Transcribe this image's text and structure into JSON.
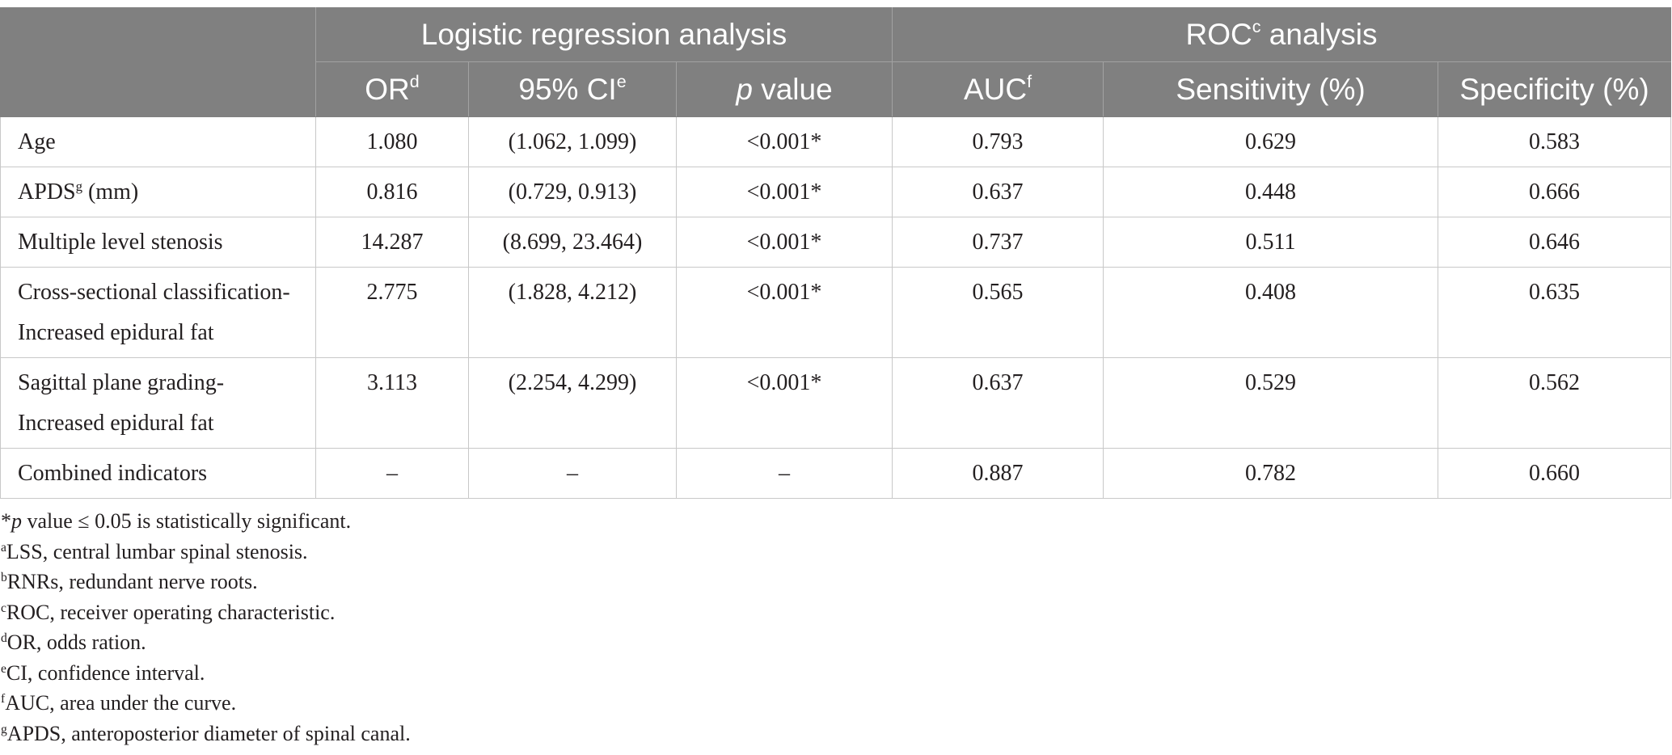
{
  "colors": {
    "header_bg": "#808080",
    "header_text": "#ffffff",
    "rule": "#c8c8c8",
    "text": "#231f20"
  },
  "table": {
    "header": {
      "group_logistic": "Logistic regression analysis",
      "group_roc": {
        "text": "ROC",
        "sup": "c",
        "suffix": "analysis"
      },
      "or": {
        "text": "OR",
        "sup": "d"
      },
      "ci": {
        "text": "95% CI",
        "sup": "e"
      },
      "p": {
        "italic": "p",
        "text": "value"
      },
      "auc": {
        "text": "AUC",
        "sup": "f"
      },
      "sensitivity": "Sensitivity (%)",
      "specificity": "Specificity (%)"
    },
    "rows": [
      {
        "label": "Age",
        "or": "1.080",
        "ci": "(1.062, 1.099)",
        "p": "<0.001*",
        "auc": "0.793",
        "sensitivity": "0.629",
        "specificity": "0.583"
      },
      {
        "label": {
          "text": "APDS",
          "sup": "g",
          "suffix": "(mm)"
        },
        "or": "0.816",
        "ci": "(0.729, 0.913)",
        "p": "<0.001*",
        "auc": "0.637",
        "sensitivity": "0.448",
        "specificity": "0.666"
      },
      {
        "label": "Multiple level stenosis",
        "or": "14.287",
        "ci": "(8.699, 23.464)",
        "p": "<0.001*",
        "auc": "0.737",
        "sensitivity": "0.511",
        "specificity": "0.646"
      },
      {
        "label": [
          "Cross-sectional classification-",
          "Increased epidural fat"
        ],
        "or": "2.775",
        "ci": "(1.828, 4.212)",
        "p": "<0.001*",
        "auc": "0.565",
        "sensitivity": "0.408",
        "specificity": "0.635"
      },
      {
        "label": [
          "Sagittal plane grading-",
          "Increased epidural fat"
        ],
        "or": "3.113",
        "ci": "(2.254, 4.299)",
        "p": "<0.001*",
        "auc": "0.637",
        "sensitivity": "0.529",
        "specificity": "0.562"
      },
      {
        "label": "Combined indicators",
        "or": "–",
        "ci": "–",
        "p": "–",
        "auc": "0.887",
        "sensitivity": "0.782",
        "specificity": "0.660"
      }
    ]
  },
  "footnotes": [
    {
      "prefix": "*",
      "italic": "p",
      "text": "value ≤ 0.05 is statistically significant."
    },
    {
      "mark": "a",
      "text": "LSS, central lumbar spinal stenosis."
    },
    {
      "mark": "b",
      "text": "RNRs, redundant nerve roots."
    },
    {
      "mark": "c",
      "text": "ROC, receiver operating characteristic."
    },
    {
      "mark": "d",
      "text": "OR, odds ration."
    },
    {
      "mark": "e",
      "text": "CI, confidence interval."
    },
    {
      "mark": "f",
      "text": "AUC, area under the curve."
    },
    {
      "mark": "g",
      "text": "APDS, anteroposterior diameter of spinal canal."
    }
  ]
}
